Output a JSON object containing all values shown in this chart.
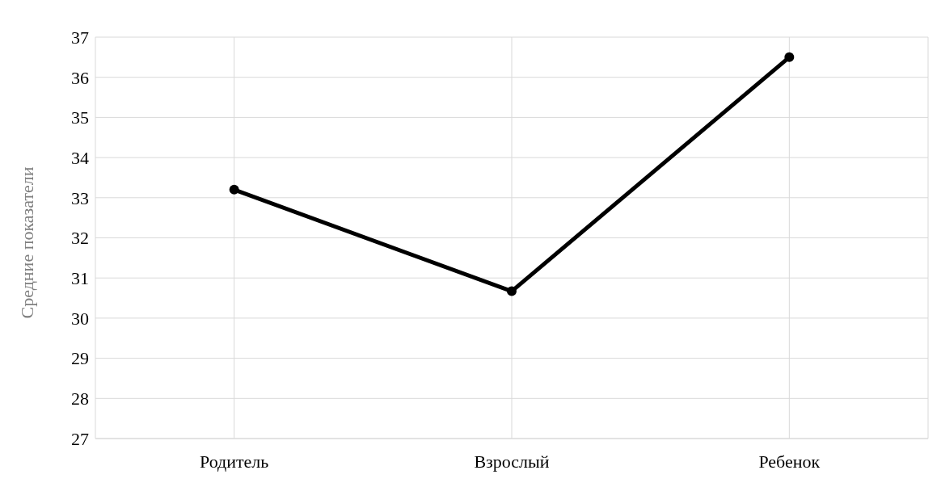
{
  "chart_data": {
    "type": "line",
    "ylabel": "Средние показатели",
    "categories": [
      "Родитель",
      "Взрослый",
      "Ребенок"
    ],
    "series": [
      {
        "color": "#000000",
        "values": [
          33.2,
          30.67,
          36.5
        ]
      }
    ],
    "ylim": [
      27,
      37
    ],
    "yticks": [
      27,
      28,
      29,
      30,
      31,
      32,
      33,
      34,
      35,
      36,
      37
    ],
    "grid": true,
    "marker": "circle",
    "line_style": "solid"
  }
}
